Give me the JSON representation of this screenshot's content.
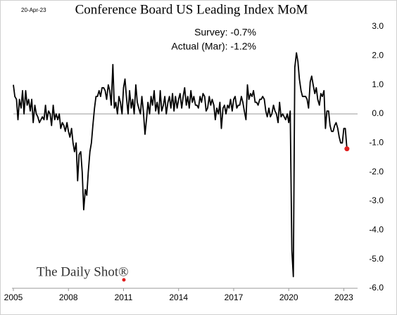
{
  "chart_data": {
    "type": "line",
    "title": "Conference Board US Leading Index MoM",
    "date_note": "20-Apr-23",
    "annotations": [
      "Survey:  -0.7%",
      "Actual (Mar):  -1.2%"
    ],
    "logo": "The Daily Shot®",
    "xlim": [
      2005,
      2023.75
    ],
    "xticks": [
      2005,
      2008,
      2011,
      2014,
      2017,
      2020,
      2023
    ],
    "ylim": [
      -6,
      3
    ],
    "yticks": [
      {
        "value": 3,
        "label": "3.0"
      },
      {
        "value": 2,
        "label": "2.0"
      },
      {
        "value": 1,
        "label": "1.0"
      },
      {
        "value": 0,
        "label": "0.0"
      },
      {
        "value": -1,
        "label": "-1.0"
      },
      {
        "value": -2,
        "label": "-2.0"
      },
      {
        "value": -3,
        "label": "-3.0"
      },
      {
        "value": -4,
        "label": "-4.0"
      },
      {
        "value": -5,
        "label": "-5.0"
      },
      {
        "value": -6,
        "label": "-6.0"
      }
    ],
    "zero_line": true,
    "last_point_color": "#e01e1e",
    "x": [
      2005,
      2005.08,
      2005.17,
      2005.25,
      2005.33,
      2005.42,
      2005.5,
      2005.58,
      2005.67,
      2005.75,
      2005.83,
      2005.92,
      2006,
      2006.08,
      2006.17,
      2006.25,
      2006.33,
      2006.42,
      2006.5,
      2006.58,
      2006.67,
      2006.75,
      2006.83,
      2006.92,
      2007,
      2007.08,
      2007.17,
      2007.25,
      2007.33,
      2007.42,
      2007.5,
      2007.58,
      2007.67,
      2007.75,
      2007.83,
      2007.92,
      2008,
      2008.08,
      2008.17,
      2008.25,
      2008.33,
      2008.42,
      2008.5,
      2008.58,
      2008.67,
      2008.75,
      2008.83,
      2008.92,
      2009,
      2009.08,
      2009.17,
      2009.25,
      2009.33,
      2009.42,
      2009.5,
      2009.58,
      2009.67,
      2009.75,
      2009.83,
      2009.92,
      2010,
      2010.08,
      2010.17,
      2010.25,
      2010.33,
      2010.42,
      2010.5,
      2010.58,
      2010.67,
      2010.75,
      2010.83,
      2010.92,
      2011,
      2011.08,
      2011.17,
      2011.25,
      2011.33,
      2011.42,
      2011.5,
      2011.58,
      2011.67,
      2011.75,
      2011.83,
      2011.92,
      2012,
      2012.08,
      2012.17,
      2012.25,
      2012.33,
      2012.42,
      2012.5,
      2012.58,
      2012.67,
      2012.75,
      2012.83,
      2012.92,
      2013,
      2013.08,
      2013.17,
      2013.25,
      2013.33,
      2013.42,
      2013.5,
      2013.58,
      2013.67,
      2013.75,
      2013.83,
      2013.92,
      2014,
      2014.08,
      2014.17,
      2014.25,
      2014.33,
      2014.42,
      2014.5,
      2014.58,
      2014.67,
      2014.75,
      2014.83,
      2014.92,
      2015,
      2015.08,
      2015.17,
      2015.25,
      2015.33,
      2015.42,
      2015.5,
      2015.58,
      2015.67,
      2015.75,
      2015.83,
      2015.92,
      2016,
      2016.08,
      2016.17,
      2016.25,
      2016.33,
      2016.42,
      2016.5,
      2016.58,
      2016.67,
      2016.75,
      2016.83,
      2016.92,
      2017,
      2017.08,
      2017.17,
      2017.25,
      2017.33,
      2017.42,
      2017.5,
      2017.58,
      2017.67,
      2017.75,
      2017.83,
      2017.92,
      2018,
      2018.08,
      2018.17,
      2018.25,
      2018.33,
      2018.42,
      2018.5,
      2018.58,
      2018.67,
      2018.75,
      2018.83,
      2018.92,
      2019,
      2019.08,
      2019.17,
      2019.25,
      2019.33,
      2019.42,
      2019.5,
      2019.58,
      2019.67,
      2019.75,
      2019.83,
      2019.92,
      2020,
      2020.08,
      2020.17,
      2020.25,
      2020.33,
      2020.42,
      2020.5,
      2020.58,
      2020.67,
      2020.75,
      2020.83,
      2020.92,
      2021,
      2021.08,
      2021.17,
      2021.25,
      2021.33,
      2021.42,
      2021.5,
      2021.58,
      2021.67,
      2021.75,
      2021.83,
      2021.92,
      2022,
      2022.08,
      2022.17,
      2022.25,
      2022.33,
      2022.42,
      2022.5,
      2022.58,
      2022.67,
      2022.75,
      2022.83,
      2022.92,
      2023,
      2023.08,
      2023.17
    ],
    "series": [
      {
        "color": "#000000",
        "values": [
          1.0,
          0.6,
          0.5,
          -0.2,
          0.5,
          0.2,
          0.8,
          0.0,
          0.8,
          0.3,
          0.5,
          0.1,
          0.5,
          -0.3,
          0.3,
          0.0,
          -0.1,
          -0.3,
          -0.2,
          -0.1,
          -0.2,
          0.3,
          -0.2,
          0.1,
          0.0,
          -0.4,
          0.3,
          -0.2,
          0.0,
          -0.2,
          0.0,
          -0.5,
          -0.3,
          -0.4,
          -0.6,
          -0.3,
          -0.6,
          -0.8,
          -0.5,
          -1.0,
          -1.3,
          -1.0,
          -2.3,
          -1.4,
          -1.3,
          -2.0,
          -3.3,
          -2.6,
          -2.8,
          -2.0,
          -1.3,
          -1.0,
          -0.4,
          0.2,
          0.6,
          0.6,
          0.8,
          0.6,
          0.9,
          0.9,
          0.8,
          0.5,
          1.0,
          0.8,
          0.3,
          1.7,
          0.2,
          0.4,
          0.0,
          0.6,
          0.4,
          0.0,
          0.9,
          1.2,
          0.5,
          0.0,
          0.8,
          0.2,
          0.5,
          0.0,
          1.0,
          0.4,
          0.2,
          0.0,
          0.6,
          0.1,
          -0.7,
          -0.2,
          0.4,
          0.0,
          0.6,
          0.3,
          0.8,
          0.1,
          0.4,
          0.0,
          0.8,
          0.1,
          0.3,
          0.6,
          0.0,
          0.4,
          0.6,
          0.2,
          0.7,
          0.1,
          0.6,
          0.2,
          0.5,
          0.7,
          0.2,
          0.6,
          0.9,
          0.3,
          0.6,
          0.2,
          0.8,
          0.4,
          0.6,
          0.3,
          0.3,
          0.2,
          0.6,
          0.4,
          0.7,
          0.6,
          0.1,
          0.2,
          0.6,
          0.3,
          0.5,
          0.3,
          -0.2,
          0.2,
          0.0,
          0.4,
          -0.5,
          0.2,
          0.3,
          0.0,
          0.3,
          0.2,
          0.5,
          0.1,
          0.5,
          0.6,
          0.2,
          0.3,
          0.3,
          0.6,
          0.4,
          0.1,
          -0.2,
          1.0,
          0.5,
          0.7,
          0.6,
          0.8,
          0.4,
          0.4,
          0.3,
          0.5,
          0.5,
          0.6,
          0.5,
          0.1,
          -0.1,
          0.2,
          -0.1,
          0.0,
          0.3,
          0.1,
          0.0,
          -0.3,
          0.4,
          -0.1,
          0.0,
          -0.1,
          -0.2,
          0.0,
          -0.3,
          0.1,
          -4.7,
          -5.6,
          1.6,
          2.1,
          1.8,
          1.2,
          0.8,
          0.6,
          0.6,
          0.6,
          0.5,
          0.2,
          1.1,
          1.3,
          1.0,
          0.7,
          0.9,
          0.5,
          0.3,
          0.7,
          0.6,
          0.8,
          -0.5,
          0.1,
          0.1,
          -0.4,
          -0.6,
          -0.6,
          -0.4,
          -0.3,
          -0.5,
          -0.8,
          -1.0,
          -1.0,
          -0.5,
          -0.5,
          -1.2
        ]
      }
    ]
  }
}
